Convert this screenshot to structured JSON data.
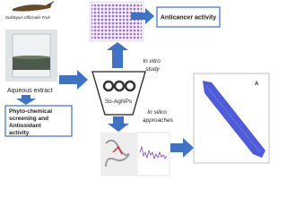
{
  "labels": {
    "fruit": "Solidopus officinalis Fruit",
    "extract": "Aqueous extract",
    "np": "So-AgNPs",
    "anticancer": "Anticancer activity",
    "invitro1": "In vitro",
    "invitro2": "study",
    "insilico1": "In silico",
    "insilico2": "approaches",
    "phyto1": "Phyto-chemical",
    "phyto2": "screening and",
    "phyto3": "Antioxidant",
    "phyto4": "activity",
    "plotLabel": "A"
  }
}
